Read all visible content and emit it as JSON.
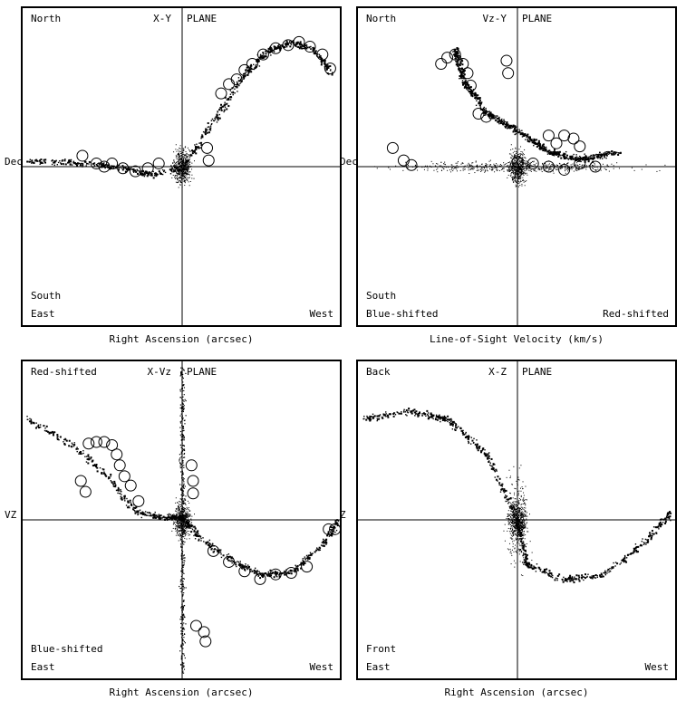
{
  "panels": [
    {
      "id": "xy",
      "title_left": "X-Y",
      "title_right": "PLANE",
      "top_left": "North",
      "bottom_upper_left": "South",
      "bottom_left": "East",
      "bottom_right": "West",
      "y_label": "Dec",
      "x_label": "Right Ascension (arcsec)"
    },
    {
      "id": "vzy",
      "title_left": "Vz-Y",
      "title_right": "PLANE",
      "top_left": "North",
      "bottom_upper_left": "South",
      "bottom_left": "Blue-shifted",
      "bottom_right": "Red-shifted",
      "y_label": "Dec",
      "x_label": "Line-of-Sight Velocity (km/s)"
    },
    {
      "id": "xvz",
      "title_left": "X-Vz",
      "title_right": "PLANE",
      "top_left": "Red-shifted",
      "bottom_upper_left": "Blue-shifted",
      "bottom_left": "East",
      "bottom_right": "West",
      "y_label": "VZ",
      "x_label": "Right Ascension (arcsec)"
    },
    {
      "id": "xz",
      "title_left": "X-Z",
      "title_right": "PLANE",
      "top_left": "Back",
      "bottom_upper_left": "Front",
      "bottom_left": "East",
      "bottom_right": "West",
      "y_label": "Z",
      "x_label": "Right Ascension (arcsec)"
    }
  ],
  "chart_data": [
    {
      "type": "scatter",
      "panel": "xy",
      "xlim": [
        -1,
        1
      ],
      "ylim": [
        -1,
        1
      ],
      "tail_curve": [
        [
          -1,
          0.04
        ],
        [
          -0.7,
          0.03
        ],
        [
          -0.4,
          0.0
        ],
        [
          -0.2,
          -0.05
        ],
        [
          0,
          0
        ],
        [
          0.2,
          0.3
        ],
        [
          0.4,
          0.6
        ],
        [
          0.55,
          0.75
        ],
        [
          0.7,
          0.8
        ],
        [
          0.85,
          0.75
        ],
        [
          0.95,
          0.6
        ]
      ],
      "circles": [
        [
          -0.64,
          0.07
        ],
        [
          -0.55,
          0.02
        ],
        [
          -0.5,
          0.0
        ],
        [
          -0.45,
          0.02
        ],
        [
          -0.38,
          -0.01
        ],
        [
          -0.3,
          -0.03
        ],
        [
          -0.22,
          -0.01
        ],
        [
          -0.15,
          0.02
        ],
        [
          0.16,
          0.12
        ],
        [
          0.17,
          0.04
        ],
        [
          0.25,
          0.47
        ],
        [
          0.3,
          0.53
        ],
        [
          0.35,
          0.56
        ],
        [
          0.4,
          0.62
        ],
        [
          0.45,
          0.66
        ],
        [
          0.52,
          0.72
        ],
        [
          0.6,
          0.76
        ],
        [
          0.68,
          0.78
        ],
        [
          0.75,
          0.8
        ],
        [
          0.82,
          0.77
        ],
        [
          0.9,
          0.72
        ],
        [
          0.95,
          0.63
        ]
      ]
    },
    {
      "type": "scatter",
      "panel": "vzy",
      "xlim": [
        -1,
        1
      ],
      "ylim": [
        -1,
        1
      ],
      "tail_curve": [
        [
          -0.4,
          0.75
        ],
        [
          -0.35,
          0.55
        ],
        [
          -0.2,
          0.35
        ],
        [
          0,
          0.23
        ],
        [
          0.2,
          0.1
        ],
        [
          0.4,
          0.05
        ],
        [
          0.65,
          0.1
        ]
      ],
      "circles": [
        [
          -0.49,
          0.66
        ],
        [
          -0.45,
          0.7
        ],
        [
          -0.4,
          0.72
        ],
        [
          -0.35,
          0.66
        ],
        [
          -0.32,
          0.6
        ],
        [
          -0.3,
          0.52
        ],
        [
          -0.25,
          0.34
        ],
        [
          -0.2,
          0.32
        ],
        [
          0.2,
          0.2
        ],
        [
          0.25,
          0.15
        ],
        [
          0.3,
          0.2
        ],
        [
          0.36,
          0.18
        ],
        [
          0.4,
          0.13
        ],
        [
          -0.8,
          0.12
        ],
        [
          -0.73,
          0.04
        ],
        [
          -0.68,
          0.01
        ],
        [
          0.0,
          0.03
        ],
        [
          0.1,
          0.02
        ],
        [
          0.2,
          0.0
        ],
        [
          0.3,
          -0.02
        ],
        [
          0.4,
          0.02
        ],
        [
          0.5,
          0.0
        ],
        [
          -0.07,
          0.68
        ],
        [
          -0.06,
          0.6
        ]
      ]
    },
    {
      "type": "scatter",
      "panel": "xvz",
      "xlim": [
        -1,
        1
      ],
      "ylim": [
        -1,
        1
      ],
      "tail_curve": [
        [
          -1,
          0.65
        ],
        [
          -0.7,
          0.48
        ],
        [
          -0.45,
          0.25
        ],
        [
          -0.3,
          0.05
        ],
        [
          -0.1,
          0.02
        ],
        [
          0,
          0.02
        ],
        [
          0.1,
          -0.1
        ],
        [
          0.3,
          -0.25
        ],
        [
          0.5,
          -0.35
        ],
        [
          0.7,
          -0.33
        ],
        [
          0.9,
          -0.15
        ],
        [
          1,
          0
        ]
      ],
      "circles": [
        [
          -0.6,
          0.49
        ],
        [
          -0.55,
          0.5
        ],
        [
          -0.5,
          0.5
        ],
        [
          -0.45,
          0.48
        ],
        [
          -0.42,
          0.42
        ],
        [
          -0.4,
          0.35
        ],
        [
          -0.37,
          0.28
        ],
        [
          -0.33,
          0.22
        ],
        [
          -0.28,
          0.12
        ],
        [
          -0.65,
          0.25
        ],
        [
          -0.62,
          0.18
        ],
        [
          0.06,
          0.35
        ],
        [
          0.07,
          0.25
        ],
        [
          0.07,
          0.17
        ],
        [
          0.2,
          -0.2
        ],
        [
          0.3,
          -0.27
        ],
        [
          0.4,
          -0.33
        ],
        [
          0.5,
          -0.38
        ],
        [
          0.6,
          -0.35
        ],
        [
          0.7,
          -0.34
        ],
        [
          0.8,
          -0.3
        ],
        [
          0.94,
          -0.06
        ],
        [
          0.98,
          -0.06
        ],
        [
          0.09,
          -0.68
        ],
        [
          0.14,
          -0.72
        ],
        [
          0.15,
          -0.78
        ]
      ]
    },
    {
      "type": "scatter",
      "panel": "xz",
      "xlim": [
        -1,
        1
      ],
      "ylim": [
        -1,
        1
      ],
      "tail_curve": [
        [
          -1,
          0.65
        ],
        [
          -0.7,
          0.7
        ],
        [
          -0.45,
          0.65
        ],
        [
          -0.2,
          0.42
        ],
        [
          0,
          0.0
        ],
        [
          0.05,
          -0.28
        ],
        [
          0.3,
          -0.38
        ],
        [
          0.55,
          -0.35
        ],
        [
          0.8,
          -0.15
        ],
        [
          0.98,
          0.05
        ]
      ],
      "circles": []
    }
  ]
}
